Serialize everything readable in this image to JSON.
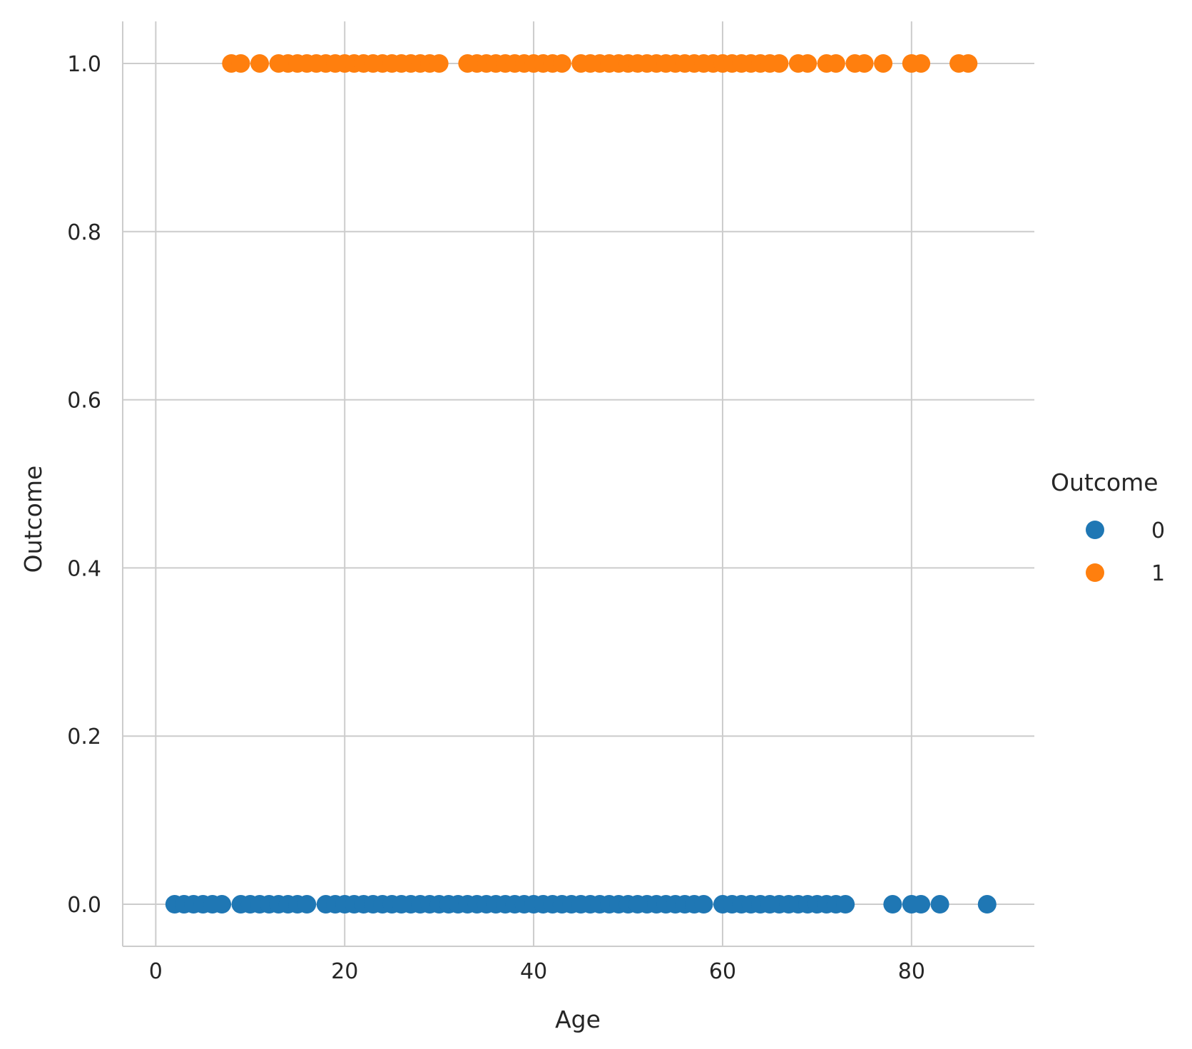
{
  "chart_data": {
    "type": "scatter",
    "xlabel": "Age",
    "ylabel": "Outcome",
    "xlim": [
      -3.5,
      93
    ],
    "ylim": [
      -0.05,
      1.05
    ],
    "x_ticks": [
      0,
      20,
      40,
      60,
      80
    ],
    "y_ticks": [
      0.0,
      0.2,
      0.4,
      0.6,
      0.8,
      1.0
    ],
    "grid": true,
    "legend": {
      "title": "Outcome",
      "position": "right"
    },
    "series": [
      {
        "name": "0",
        "color": "#1f77b4",
        "y": 0,
        "x": [
          2,
          3,
          4,
          5,
          6,
          7,
          9,
          10,
          11,
          12,
          13,
          14,
          15,
          16,
          18,
          19,
          20,
          21,
          22,
          23,
          24,
          25,
          26,
          27,
          28,
          29,
          30,
          31,
          32,
          33,
          34,
          35,
          36,
          37,
          38,
          39,
          40,
          41,
          42,
          43,
          44,
          45,
          46,
          47,
          48,
          49,
          50,
          51,
          52,
          53,
          54,
          55,
          56,
          57,
          58,
          60,
          61,
          62,
          63,
          64,
          65,
          66,
          67,
          68,
          69,
          70,
          71,
          72,
          73,
          78,
          80,
          81,
          83,
          88
        ]
      },
      {
        "name": "1",
        "color": "#ff7f0e",
        "y": 1,
        "x": [
          8,
          9,
          11,
          13,
          14,
          15,
          16,
          17,
          18,
          19,
          20,
          21,
          22,
          23,
          24,
          25,
          26,
          27,
          28,
          29,
          30,
          33,
          34,
          35,
          36,
          37,
          38,
          39,
          40,
          41,
          42,
          43,
          45,
          46,
          47,
          48,
          49,
          50,
          51,
          52,
          53,
          54,
          55,
          56,
          57,
          58,
          59,
          60,
          61,
          62,
          63,
          64,
          65,
          66,
          68,
          69,
          71,
          72,
          74,
          75,
          77,
          80,
          81,
          85,
          86
        ]
      }
    ]
  }
}
